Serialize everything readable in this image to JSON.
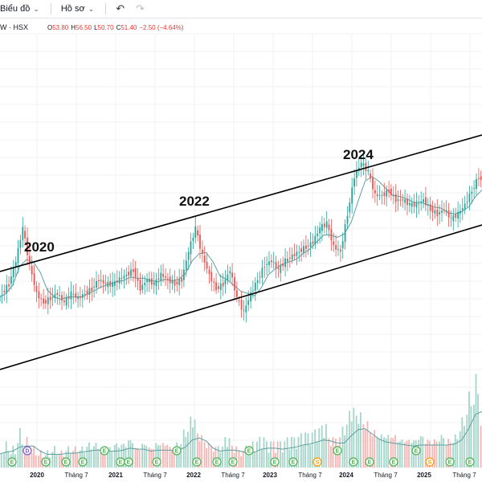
{
  "toolbar": {
    "chart_menu_label": "Biểu đồ",
    "profile_menu_label": "Hồ sơ",
    "icons": [
      "chevron-down-icon",
      "undo-icon",
      "redo-icon"
    ]
  },
  "legend": {
    "symbol": "W · HSX",
    "open_label": "O",
    "open_value": "53.80",
    "high_label": "H",
    "high_value": "56.50",
    "low_label": "L",
    "low_value": "50.70",
    "close_label": "C",
    "close_value": "51.40",
    "change": "−2.50 (−4.64%)"
  },
  "annotations": {
    "label_2020": "2020",
    "label_2022": "2022",
    "label_2024": "2024"
  },
  "x_axis": {
    "labels": [
      "2020",
      "Tháng 7",
      "2021",
      "Tháng 7",
      "2022",
      "Tháng 7",
      "2023",
      "Tháng 7",
      "2024",
      "Tháng 7",
      "2025",
      "Tháng 7"
    ]
  },
  "events": {
    "marker_letters": [
      "D",
      "E",
      "S"
    ]
  },
  "colors": {
    "up": "#26a69a",
    "down": "#ef5350",
    "ma_line": "#5f9fa0",
    "channel": "#000000",
    "event_green": "#4caf50",
    "event_purple": "#7e57c2",
    "event_orange": "#ff9800",
    "loss": "#e53935"
  },
  "chart_data": {
    "type": "candlestick",
    "title": "",
    "x": [
      "2019-10",
      "2019-11",
      "2019-12",
      "2020-01",
      "2020-02",
      "2020-03",
      "2020-04",
      "2020-05",
      "2020-06",
      "2020-07",
      "2020-08",
      "2020-09",
      "2020-10",
      "2020-11",
      "2020-12",
      "2021-01",
      "2021-02",
      "2021-03",
      "2021-04",
      "2021-05",
      "2021-06",
      "2021-07",
      "2021-08",
      "2021-09",
      "2021-10",
      "2021-11",
      "2021-12",
      "2022-01",
      "2022-02",
      "2022-03",
      "2022-04",
      "2022-05",
      "2022-06",
      "2022-07",
      "2022-08",
      "2022-09",
      "2022-10",
      "2022-11",
      "2022-12",
      "2023-01",
      "2023-02",
      "2023-03",
      "2023-04",
      "2023-05",
      "2023-06",
      "2023-07",
      "2023-08",
      "2023-09",
      "2023-10",
      "2023-11",
      "2023-12",
      "2024-01",
      "2024-02",
      "2024-03",
      "2024-04",
      "2024-05",
      "2024-06",
      "2024-07",
      "2024-08",
      "2024-09",
      "2024-10",
      "2024-11",
      "2024-12",
      "2025-01",
      "2025-02",
      "2025-03",
      "2025-04",
      "2025-05",
      "2025-06",
      "2025-07",
      "2025-08",
      "2025-09"
    ],
    "close": [
      36,
      38,
      40,
      45,
      52,
      44,
      38,
      36,
      37,
      38,
      36,
      38,
      37,
      38,
      39,
      41,
      40,
      40,
      41,
      42,
      43,
      39,
      41,
      40,
      42,
      41,
      40,
      41,
      47,
      52,
      46,
      42,
      39,
      40,
      43,
      37,
      34,
      38,
      41,
      44,
      45,
      43,
      45,
      46,
      47,
      48,
      49,
      52,
      53,
      48,
      47,
      55,
      63,
      66,
      64,
      59,
      59,
      60,
      58,
      58,
      57,
      57,
      58,
      56,
      55,
      56,
      54,
      55,
      57,
      60,
      63,
      61
    ],
    "series": [
      {
        "name": "",
        "values": [
          36,
          38,
          40,
          45,
          52,
          44,
          38,
          36,
          37,
          38,
          36,
          38,
          37,
          38,
          39,
          41,
          40,
          40,
          41,
          42,
          43,
          39,
          41,
          40,
          42,
          41,
          40,
          41,
          47,
          52,
          46,
          42,
          39,
          40,
          43,
          37,
          34,
          38,
          41,
          44,
          45,
          43,
          45,
          46,
          47,
          48,
          49,
          52,
          53,
          48,
          47,
          55,
          63,
          66,
          64,
          59,
          59,
          60,
          58,
          58,
          57,
          57,
          58,
          56,
          55,
          56,
          54,
          55,
          57,
          60,
          63,
          61
        ]
      }
    ],
    "volume": [
      4,
      5,
      6,
      5,
      9,
      7,
      5,
      4,
      4,
      5,
      4,
      5,
      5,
      5,
      6,
      6,
      5,
      5,
      6,
      6,
      7,
      5,
      6,
      5,
      6,
      6,
      5,
      6,
      9,
      12,
      8,
      6,
      5,
      5,
      7,
      5,
      4,
      5,
      6,
      7,
      6,
      6,
      6,
      7,
      7,
      8,
      8,
      9,
      10,
      7,
      7,
      10,
      14,
      13,
      11,
      9,
      8,
      8,
      8,
      7,
      7,
      7,
      8,
      7,
      7,
      8,
      7,
      8,
      12,
      18,
      22,
      15
    ],
    "annotated_peaks": [
      "2020",
      "2022",
      "2024"
    ]
  }
}
